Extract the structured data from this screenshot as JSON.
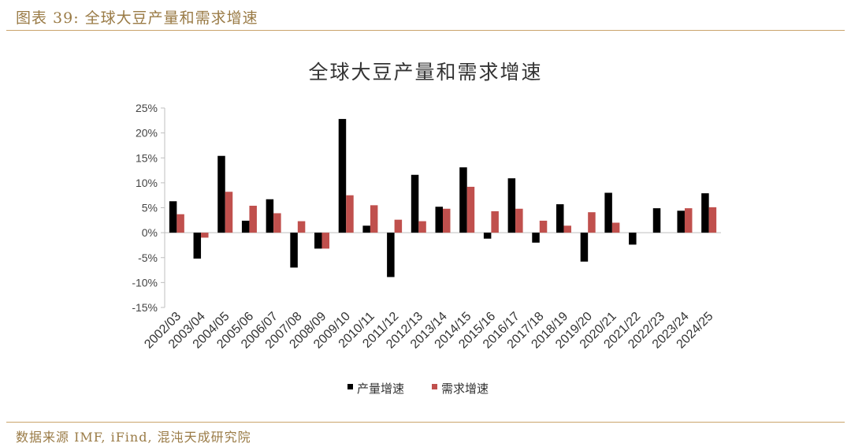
{
  "header": {
    "title": "图表 39: 全球大豆产量和需求增速"
  },
  "footer": {
    "source": "数据来源 IMF, iFind, 混沌天成研究院"
  },
  "colors": {
    "production": "#000000",
    "demand": "#c0504d",
    "accent": "#caa46b",
    "text_accent": "#9a7b46"
  },
  "chart_data": {
    "type": "bar",
    "title": "全球大豆产量和需求增速",
    "xlabel": "",
    "ylabel": "",
    "ylim": [
      -15,
      25
    ],
    "yticks": [
      "25%",
      "20%",
      "15%",
      "10%",
      "5%",
      "0%",
      "-5%",
      "-10%",
      "-15%"
    ],
    "ytick_values": [
      25,
      20,
      15,
      10,
      5,
      0,
      -5,
      -10,
      -15
    ],
    "grid": false,
    "legend_position": "bottom",
    "categories": [
      "2002/03",
      "2003/04",
      "2004/05",
      "2005/06",
      "2006/07",
      "2007/08",
      "2008/09",
      "2009/10",
      "2010/11",
      "2011/12",
      "2012/13",
      "2013/14",
      "2014/15",
      "2015/16",
      "2016/17",
      "2017/18",
      "2018/19",
      "2019/20",
      "2020/21",
      "2021/22",
      "2022/23",
      "2023/24",
      "2024/25"
    ],
    "series": [
      {
        "name": "产量增速",
        "color": "#000000",
        "values": [
          6.3,
          -5.2,
          15.4,
          2.4,
          6.7,
          -7.0,
          -3.2,
          22.8,
          1.4,
          -8.9,
          11.6,
          5.2,
          13.1,
          -1.2,
          10.9,
          -2.0,
          5.7,
          -5.8,
          8.0,
          -2.4,
          4.9,
          4.4,
          7.9
        ]
      },
      {
        "name": "需求增速",
        "color": "#c0504d",
        "values": [
          3.7,
          -1.0,
          8.2,
          5.4,
          3.9,
          2.3,
          -3.2,
          7.5,
          5.5,
          2.6,
          2.3,
          4.8,
          9.2,
          4.3,
          4.8,
          2.4,
          1.4,
          4.1,
          2.0,
          0.0,
          0.0,
          4.9,
          5.1
        ]
      }
    ]
  }
}
